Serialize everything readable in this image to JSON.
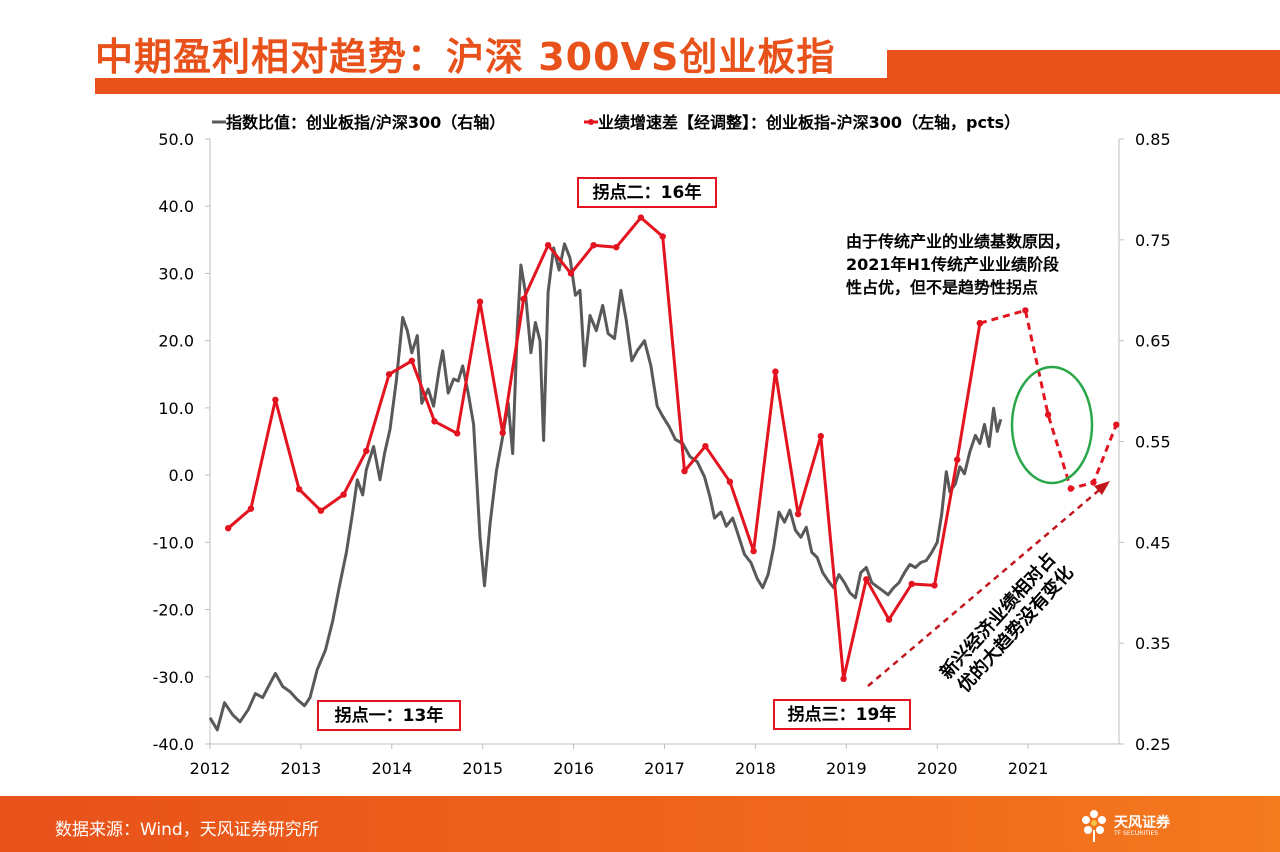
{
  "header": {
    "title": "中期盈利相对趋势：沪深 300VS创业板指"
  },
  "footer": {
    "source": "数据来源：Wind，天风证券研究所",
    "logo_text": "天风证券",
    "logo_sub": "TF SECURITIES"
  },
  "colors": {
    "accent": "#e8511a",
    "red_series": "#e3141f",
    "gray_series": "#595959",
    "green_circle": "#2aa74a",
    "dark_red_arrow": "#c0161c"
  },
  "chart_data": {
    "type": "line",
    "x_ticks": [
      "2012",
      "2013",
      "2014",
      "2015",
      "2016",
      "2017",
      "2018",
      "2019",
      "2020",
      "2021"
    ],
    "xlim": [
      2012.0,
      2022.0
    ],
    "y_left_ticks": [
      "50.0",
      "40.0",
      "30.0",
      "20.0",
      "10.0",
      "0.0",
      "-10.0",
      "-20.0",
      "-30.0",
      "-40.0"
    ],
    "y_left_lim": [
      -40,
      50
    ],
    "y_right_ticks": [
      "0.85",
      "0.75",
      "0.65",
      "0.55",
      "0.45",
      "0.35",
      "0.25"
    ],
    "y_right_lim": [
      0.25,
      0.85
    ],
    "legend": {
      "gray_label": "指数比值：创业板指/沪深300（右轴）",
      "red_label": "业绩增速差【经调整】：创业板指-沪深300（左轴，pcts）"
    },
    "series": [
      {
        "name": "业绩增速差【经调整】：创业板指-沪深300（左轴，pcts）",
        "axis": "left",
        "style": "solid-markers",
        "points": [
          [
            2012.2,
            -7.9
          ],
          [
            2012.45,
            -5.0
          ],
          [
            2012.72,
            11.2
          ],
          [
            2012.98,
            -2.1
          ],
          [
            2013.22,
            -5.3
          ],
          [
            2013.47,
            -2.9
          ],
          [
            2013.72,
            3.6
          ],
          [
            2013.97,
            15.0
          ],
          [
            2014.22,
            17.0
          ],
          [
            2014.47,
            8.0
          ],
          [
            2014.72,
            6.2
          ],
          [
            2014.97,
            25.8
          ],
          [
            2015.22,
            6.3
          ],
          [
            2015.45,
            26.2
          ],
          [
            2015.72,
            34.2
          ],
          [
            2015.97,
            30.0
          ],
          [
            2016.22,
            34.2
          ],
          [
            2016.47,
            33.9
          ],
          [
            2016.74,
            38.3
          ],
          [
            2016.98,
            35.5
          ],
          [
            2017.22,
            0.6
          ],
          [
            2017.45,
            4.3
          ],
          [
            2017.72,
            -1.0
          ],
          [
            2017.98,
            -11.3
          ],
          [
            2018.22,
            15.4
          ],
          [
            2018.47,
            -5.8
          ],
          [
            2018.72,
            5.8
          ],
          [
            2018.97,
            -30.3
          ],
          [
            2019.22,
            -15.5
          ],
          [
            2019.47,
            -21.5
          ],
          [
            2019.72,
            -16.2
          ],
          [
            2019.97,
            -16.4
          ],
          [
            2020.22,
            2.3
          ],
          [
            2020.47,
            22.6
          ]
        ]
      },
      {
        "name": "业绩增速差【经调整】：创业板指-沪深300（左轴，pcts）",
        "axis": "left",
        "style": "dashed-forecast",
        "points": [
          [
            2020.47,
            22.6
          ],
          [
            2020.97,
            24.5
          ],
          [
            2021.22,
            9.0
          ],
          [
            2021.47,
            -2.0
          ],
          [
            2021.72,
            -1.1
          ],
          [
            2021.97,
            7.5
          ]
        ]
      },
      {
        "name": "指数比值：创业板指/沪深300（右轴）",
        "axis": "right",
        "style": "line",
        "points": [
          [
            2012.0,
            0.276
          ],
          [
            2012.08,
            0.264
          ],
          [
            2012.16,
            0.291
          ],
          [
            2012.25,
            0.279
          ],
          [
            2012.33,
            0.272
          ],
          [
            2012.42,
            0.284
          ],
          [
            2012.5,
            0.3
          ],
          [
            2012.58,
            0.296
          ],
          [
            2012.66,
            0.31
          ],
          [
            2012.72,
            0.32
          ],
          [
            2012.8,
            0.307
          ],
          [
            2012.88,
            0.302
          ],
          [
            2012.96,
            0.294
          ],
          [
            2013.04,
            0.288
          ],
          [
            2013.1,
            0.296
          ],
          [
            2013.18,
            0.324
          ],
          [
            2013.27,
            0.343
          ],
          [
            2013.35,
            0.372
          ],
          [
            2013.42,
            0.405
          ],
          [
            2013.5,
            0.44
          ],
          [
            2013.57,
            0.48
          ],
          [
            2013.62,
            0.512
          ],
          [
            2013.68,
            0.497
          ],
          [
            2013.72,
            0.522
          ],
          [
            2013.8,
            0.545
          ],
          [
            2013.87,
            0.512
          ],
          [
            2013.92,
            0.538
          ],
          [
            2013.98,
            0.562
          ],
          [
            2014.05,
            0.61
          ],
          [
            2014.12,
            0.673
          ],
          [
            2014.17,
            0.66
          ],
          [
            2014.22,
            0.638
          ],
          [
            2014.28,
            0.655
          ],
          [
            2014.33,
            0.588
          ],
          [
            2014.4,
            0.602
          ],
          [
            2014.46,
            0.585
          ],
          [
            2014.52,
            0.621
          ],
          [
            2014.56,
            0.64
          ],
          [
            2014.62,
            0.598
          ],
          [
            2014.68,
            0.612
          ],
          [
            2014.73,
            0.61
          ],
          [
            2014.78,
            0.625
          ],
          [
            2014.84,
            0.598
          ],
          [
            2014.9,
            0.567
          ],
          [
            2014.97,
            0.455
          ],
          [
            2015.02,
            0.407
          ],
          [
            2015.08,
            0.468
          ],
          [
            2015.15,
            0.52
          ],
          [
            2015.22,
            0.555
          ],
          [
            2015.28,
            0.588
          ],
          [
            2015.33,
            0.538
          ],
          [
            2015.38,
            0.66
          ],
          [
            2015.42,
            0.725
          ],
          [
            2015.47,
            0.698
          ],
          [
            2015.53,
            0.638
          ],
          [
            2015.58,
            0.668
          ],
          [
            2015.63,
            0.65
          ],
          [
            2015.67,
            0.551
          ],
          [
            2015.72,
            0.698
          ],
          [
            2015.78,
            0.742
          ],
          [
            2015.84,
            0.72
          ],
          [
            2015.9,
            0.746
          ],
          [
            2015.96,
            0.732
          ],
          [
            2016.02,
            0.695
          ],
          [
            2016.07,
            0.7
          ],
          [
            2016.12,
            0.625
          ],
          [
            2016.18,
            0.675
          ],
          [
            2016.25,
            0.66
          ],
          [
            2016.32,
            0.685
          ],
          [
            2016.38,
            0.657
          ],
          [
            2016.45,
            0.652
          ],
          [
            2016.52,
            0.7
          ],
          [
            2016.58,
            0.67
          ],
          [
            2016.64,
            0.63
          ],
          [
            2016.7,
            0.64
          ],
          [
            2016.78,
            0.65
          ],
          [
            2016.85,
            0.625
          ],
          [
            2016.92,
            0.585
          ],
          [
            2016.98,
            0.575
          ],
          [
            2017.05,
            0.565
          ],
          [
            2017.12,
            0.552
          ],
          [
            2017.2,
            0.548
          ],
          [
            2017.28,
            0.535
          ],
          [
            2017.36,
            0.53
          ],
          [
            2017.44,
            0.515
          ],
          [
            2017.5,
            0.495
          ],
          [
            2017.55,
            0.474
          ],
          [
            2017.62,
            0.48
          ],
          [
            2017.68,
            0.466
          ],
          [
            2017.75,
            0.474
          ],
          [
            2017.82,
            0.455
          ],
          [
            2017.88,
            0.438
          ],
          [
            2017.95,
            0.43
          ],
          [
            2018.02,
            0.414
          ],
          [
            2018.08,
            0.405
          ],
          [
            2018.14,
            0.418
          ],
          [
            2018.2,
            0.445
          ],
          [
            2018.26,
            0.48
          ],
          [
            2018.32,
            0.47
          ],
          [
            2018.38,
            0.482
          ],
          [
            2018.44,
            0.462
          ],
          [
            2018.5,
            0.455
          ],
          [
            2018.56,
            0.465
          ],
          [
            2018.62,
            0.44
          ],
          [
            2018.68,
            0.435
          ],
          [
            2018.74,
            0.42
          ],
          [
            2018.8,
            0.412
          ],
          [
            2018.86,
            0.405
          ],
          [
            2018.92,
            0.418
          ],
          [
            2018.98,
            0.41
          ],
          [
            2019.04,
            0.4
          ],
          [
            2019.1,
            0.395
          ],
          [
            2019.16,
            0.42
          ],
          [
            2019.22,
            0.425
          ],
          [
            2019.28,
            0.41
          ],
          [
            2019.34,
            0.406
          ],
          [
            2019.4,
            0.402
          ],
          [
            2019.46,
            0.398
          ],
          [
            2019.52,
            0.405
          ],
          [
            2019.58,
            0.41
          ],
          [
            2019.64,
            0.42
          ],
          [
            2019.7,
            0.428
          ],
          [
            2019.76,
            0.425
          ],
          [
            2019.82,
            0.43
          ],
          [
            2019.88,
            0.432
          ],
          [
            2019.94,
            0.44
          ],
          [
            2020.0,
            0.45
          ],
          [
            2020.05,
            0.478
          ],
          [
            2020.1,
            0.52
          ],
          [
            2020.14,
            0.5
          ],
          [
            2020.2,
            0.508
          ],
          [
            2020.25,
            0.525
          ],
          [
            2020.3,
            0.518
          ],
          [
            2020.36,
            0.54
          ],
          [
            2020.42,
            0.556
          ],
          [
            2020.47,
            0.548
          ],
          [
            2020.52,
            0.567
          ],
          [
            2020.57,
            0.545
          ],
          [
            2020.62,
            0.583
          ],
          [
            2020.66,
            0.56
          ],
          [
            2020.7,
            0.572
          ]
        ]
      }
    ],
    "annotations": {
      "turning_point_1": "拐点一：13年",
      "turning_point_2": "拐点二：16年",
      "turning_point_3": "拐点三：19年",
      "note_lines": [
        "由于传统产业的业绩基数原因，",
        "2021年H1传统产业业绩阶段",
        "性占优，但不是趋势性拐点"
      ],
      "arrow_lines": [
        "新兴经济业绩相对占",
        "优的大趋势没有变化"
      ]
    }
  }
}
